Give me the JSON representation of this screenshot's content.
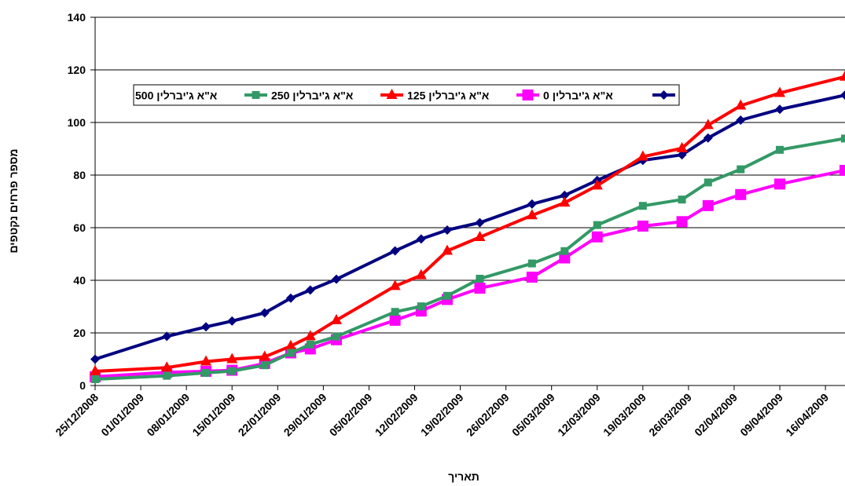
{
  "chart_data": {
    "type": "line",
    "xlabel": "תאריך",
    "ylabel": "מספר פרחים נקטפים",
    "ylim": [
      0,
      140
    ],
    "yticks": [
      0,
      20,
      40,
      60,
      80,
      100,
      120,
      140
    ],
    "xlim": [
      "2008-12-25",
      "2009-04-19"
    ],
    "xticks": [
      "25/12/2008",
      "01/01/2009",
      "08/01/2009",
      "15/01/2009",
      "22/01/2009",
      "29/01/2009",
      "05/02/2009",
      "12/02/2009",
      "19/02/2009",
      "26/02/2009",
      "05/03/2009",
      "12/03/2009",
      "19/03/2009",
      "26/03/2009",
      "02/04/2009",
      "09/04/2009",
      "16/04/2009"
    ],
    "grid": "horizontal",
    "legend_position": "top, inside plot",
    "series": [
      {
        "name": "0 א\"א ג'יברלין",
        "color": "#000080",
        "marker": "diamond",
        "x": [
          "2008-12-25",
          "2009-01-05",
          "2009-01-11",
          "2009-01-15",
          "2009-01-20",
          "2009-01-24",
          "2009-01-27",
          "2009-01-31",
          "2009-02-09",
          "2009-02-13",
          "2009-02-17",
          "2009-02-22",
          "2009-03-02",
          "2009-03-07",
          "2009-03-12",
          "2009-03-19",
          "2009-03-25",
          "2009-03-29",
          "2009-04-03",
          "2009-04-09",
          "2009-04-19"
        ],
        "values": [
          10,
          18.7,
          22.3,
          24.5,
          27.6,
          33.2,
          36.3,
          40.4,
          51.2,
          55.7,
          59.1,
          61.9,
          69.0,
          72.3,
          78.0,
          85.6,
          87.7,
          94.1,
          100.9,
          105.0,
          110.4
        ]
      },
      {
        "name": "125 א\"א ג'יברלין",
        "color": "#FF00FF",
        "marker": "square",
        "x": [
          "2008-12-25",
          "2009-01-05",
          "2009-01-11",
          "2009-01-15",
          "2009-01-20",
          "2009-01-24",
          "2009-01-27",
          "2009-01-31",
          "2009-02-09",
          "2009-02-13",
          "2009-02-17",
          "2009-02-22",
          "2009-03-02",
          "2009-03-07",
          "2009-03-12",
          "2009-03-19",
          "2009-03-25",
          "2009-03-29",
          "2009-04-03",
          "2009-04-09",
          "2009-04-19"
        ],
        "values": [
          3.3,
          5.0,
          5.4,
          5.8,
          8.4,
          12.4,
          13.9,
          17.4,
          24.8,
          28.3,
          32.7,
          37.0,
          41.2,
          48.5,
          56.5,
          60.6,
          62.3,
          68.4,
          72.6,
          76.6,
          81.8
        ]
      },
      {
        "name": "250 א\"א ג'יברלין",
        "color": "#FF0000",
        "marker": "triangle",
        "x": [
          "2008-12-25",
          "2009-01-05",
          "2009-01-11",
          "2009-01-15",
          "2009-01-20",
          "2009-01-24",
          "2009-01-27",
          "2009-01-31",
          "2009-02-09",
          "2009-02-13",
          "2009-02-17",
          "2009-02-22",
          "2009-03-02",
          "2009-03-07",
          "2009-03-12",
          "2009-03-19",
          "2009-03-25",
          "2009-03-29",
          "2009-04-03",
          "2009-04-09",
          "2009-04-19"
        ],
        "values": [
          5.4,
          6.8,
          9.1,
          10.0,
          10.9,
          15.0,
          18.7,
          24.8,
          37.8,
          41.9,
          51.2,
          56.4,
          64.7,
          69.5,
          76.0,
          87.0,
          90.2,
          99.0,
          106.4,
          111.2,
          117.4
        ]
      },
      {
        "name": "500 א\"א ג'יברלין",
        "color": "#339966",
        "marker": "small-square",
        "x": [
          "2008-12-25",
          "2009-01-05",
          "2009-01-11",
          "2009-01-15",
          "2009-01-20",
          "2009-01-24",
          "2009-01-27",
          "2009-01-31",
          "2009-02-09",
          "2009-02-13",
          "2009-02-17",
          "2009-02-22",
          "2009-03-02",
          "2009-03-07",
          "2009-03-12",
          "2009-03-19",
          "2009-03-25",
          "2009-03-29",
          "2009-04-03",
          "2009-04-09",
          "2009-04-19"
        ],
        "values": [
          2.4,
          3.7,
          4.8,
          5.5,
          7.7,
          12.4,
          15.6,
          18.6,
          28.0,
          30.1,
          34.1,
          40.6,
          46.4,
          51.1,
          61.0,
          68.3,
          70.7,
          77.2,
          82.2,
          89.6,
          93.9
        ]
      }
    ]
  }
}
